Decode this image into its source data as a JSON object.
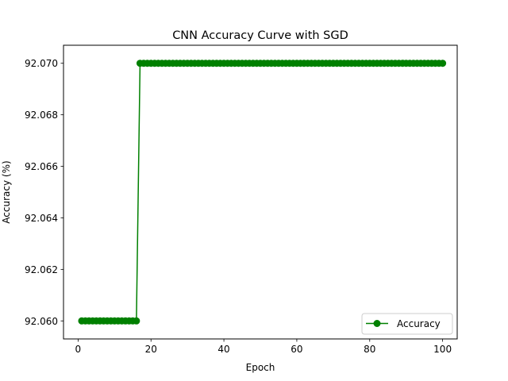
{
  "chart_data": {
    "type": "line",
    "title": "CNN Accuracy Curve with SGD",
    "xlabel": "Epoch",
    "ylabel": "Accuracy (%)",
    "xlim": [
      -4,
      104
    ],
    "ylim": [
      92.0593,
      92.0707
    ],
    "xticks": [
      0,
      20,
      40,
      60,
      80,
      100
    ],
    "xtick_labels": [
      "0",
      "20",
      "40",
      "60",
      "80",
      "100"
    ],
    "yticks": [
      92.06,
      92.062,
      92.064,
      92.066,
      92.068,
      92.07
    ],
    "ytick_labels": [
      "92.060",
      "92.062",
      "92.064",
      "92.066",
      "92.068",
      "92.070"
    ],
    "grid": false,
    "legend_position": "lower right",
    "series": [
      {
        "name": "Accuracy",
        "color": "#008000",
        "marker": "circle",
        "x": [
          1,
          2,
          3,
          4,
          5,
          6,
          7,
          8,
          9,
          10,
          11,
          12,
          13,
          14,
          15,
          16,
          17,
          18,
          19,
          20,
          21,
          22,
          23,
          24,
          25,
          26,
          27,
          28,
          29,
          30,
          31,
          32,
          33,
          34,
          35,
          36,
          37,
          38,
          39,
          40,
          41,
          42,
          43,
          44,
          45,
          46,
          47,
          48,
          49,
          50,
          51,
          52,
          53,
          54,
          55,
          56,
          57,
          58,
          59,
          60,
          61,
          62,
          63,
          64,
          65,
          66,
          67,
          68,
          69,
          70,
          71,
          72,
          73,
          74,
          75,
          76,
          77,
          78,
          79,
          80,
          81,
          82,
          83,
          84,
          85,
          86,
          87,
          88,
          89,
          90,
          91,
          92,
          93,
          94,
          95,
          96,
          97,
          98,
          99,
          100
        ],
        "y": [
          92.06,
          92.06,
          92.06,
          92.06,
          92.06,
          92.06,
          92.06,
          92.06,
          92.06,
          92.06,
          92.06,
          92.06,
          92.06,
          92.06,
          92.06,
          92.06,
          92.07,
          92.07,
          92.07,
          92.07,
          92.07,
          92.07,
          92.07,
          92.07,
          92.07,
          92.07,
          92.07,
          92.07,
          92.07,
          92.07,
          92.07,
          92.07,
          92.07,
          92.07,
          92.07,
          92.07,
          92.07,
          92.07,
          92.07,
          92.07,
          92.07,
          92.07,
          92.07,
          92.07,
          92.07,
          92.07,
          92.07,
          92.07,
          92.07,
          92.07,
          92.07,
          92.07,
          92.07,
          92.07,
          92.07,
          92.07,
          92.07,
          92.07,
          92.07,
          92.07,
          92.07,
          92.07,
          92.07,
          92.07,
          92.07,
          92.07,
          92.07,
          92.07,
          92.07,
          92.07,
          92.07,
          92.07,
          92.07,
          92.07,
          92.07,
          92.07,
          92.07,
          92.07,
          92.07,
          92.07,
          92.07,
          92.07,
          92.07,
          92.07,
          92.07,
          92.07,
          92.07,
          92.07,
          92.07,
          92.07,
          92.07,
          92.07,
          92.07,
          92.07,
          92.07,
          92.07,
          92.07,
          92.07,
          92.07,
          92.07
        ]
      }
    ]
  }
}
